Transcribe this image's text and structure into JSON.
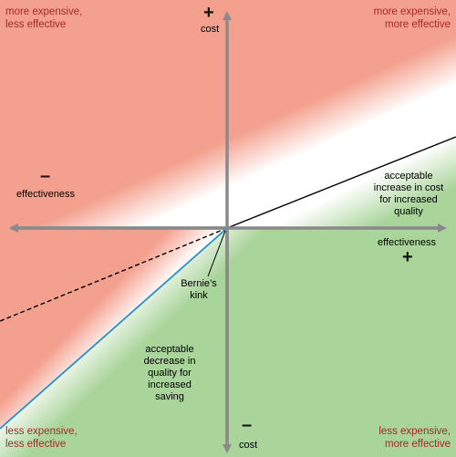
{
  "corners": {
    "top_left": [
      "more expensive,",
      "less effective"
    ],
    "top_right": [
      "more expensive,",
      "more effective"
    ],
    "bottom_left": [
      "less expensive,",
      "less effective"
    ],
    "bottom_right": [
      "less expensive,",
      "more effective"
    ]
  },
  "axes": {
    "cost_positive_sign": "+",
    "cost_positive_label": "cost",
    "cost_negative_sign": "–",
    "cost_negative_label": "cost",
    "effectiveness_negative_sign": "–",
    "effectiveness_negative_label": "effectiveness",
    "effectiveness_positive_label": "effectiveness",
    "effectiveness_positive_sign": "+"
  },
  "annotations": {
    "upper_region": [
      "acceptable",
      "increase in cost",
      "for increased",
      "quality"
    ],
    "lower_region": [
      "acceptable",
      "decrease in",
      "quality for",
      "increased",
      "saving"
    ],
    "kink": [
      "Bernie’s",
      "kink"
    ]
  },
  "colors": {
    "unacceptable_region": "#f4a08e",
    "acceptable_region": "#a9d49a",
    "axis": "#8a8a8a",
    "upper_threshold_line": "#000000",
    "lower_threshold_line": "#2a8fc4",
    "corner_text": "#a42a25"
  }
}
